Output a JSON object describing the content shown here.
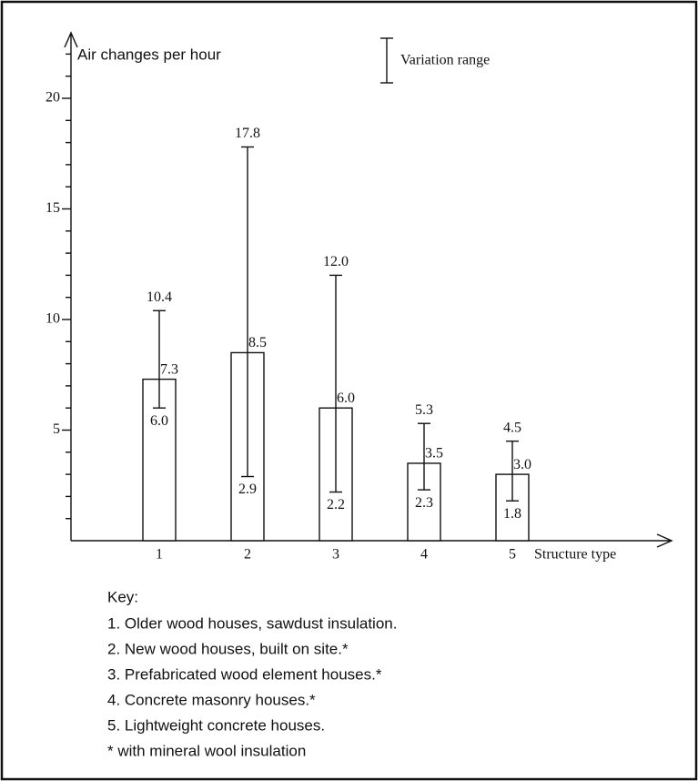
{
  "chart_data": {
    "type": "bar",
    "y_label": "Air changes per hour",
    "x_label": "Structure type",
    "legend_label": "Variation range",
    "categories": [
      "1",
      "2",
      "3",
      "4",
      "5"
    ],
    "values": [
      7.3,
      8.5,
      6.0,
      3.5,
      3.0
    ],
    "value_labels": [
      "7.3",
      "8.5",
      "6.0",
      "3.5",
      "3.0"
    ],
    "range_low": [
      6.0,
      2.9,
      2.2,
      2.3,
      1.8
    ],
    "range_low_labels": [
      "6.0",
      "2.9",
      "2.2",
      "2.3",
      "1.8"
    ],
    "range_high": [
      10.4,
      17.8,
      12.0,
      5.3,
      4.5
    ],
    "range_high_labels": [
      "10.4",
      "17.8",
      "12.0",
      "5.3",
      "4.5"
    ],
    "ylim": [
      0,
      22.8
    ],
    "yticks": [
      5,
      10,
      15,
      20
    ],
    "yminorticks": [
      1,
      2,
      3,
      4,
      6,
      7,
      8,
      9,
      11,
      12,
      13,
      14,
      16,
      17,
      18,
      19,
      21,
      22
    ],
    "color": "#ffffff",
    "key": {
      "title": "Key:",
      "items": [
        "1. Older wood houses, sawdust insulation.",
        "2. New wood houses, built on site.*",
        "3. Prefabricated wood element houses.*",
        "4. Concrete masonry houses.*",
        "5. Lightweight concrete houses.",
        "* with mineral wool insulation"
      ]
    }
  }
}
